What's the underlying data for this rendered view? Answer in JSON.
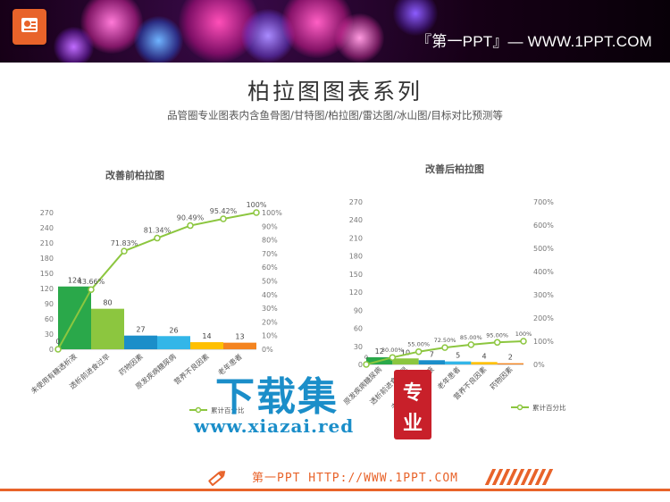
{
  "header": {
    "brand": "『第一PPT』— WWW.1PPT.COM"
  },
  "page": {
    "title": "柏拉图图表系列",
    "subtitle": "品管圈专业图表内含鱼骨图/甘特图/柏拉图/雷达图/冰山图/目标对比预测等"
  },
  "watermark": {
    "cn": "下载集",
    "tag_top": "专",
    "tag_bottom": "业",
    "url": "www.xiazai.red"
  },
  "footer": {
    "text": "第一PPT HTTP://WWW.1PPT.COM"
  },
  "icons": [
    "ppt-logo-icon",
    "pencil-icon"
  ],
  "colors": {
    "accent": "#e8632a",
    "line": "#8cc63f",
    "bars": [
      "#2aa84a",
      "#8cc63f",
      "#1b8ec9",
      "#33b6e8",
      "#ffc000",
      "#f4841f"
    ]
  },
  "chart_data": [
    {
      "type": "bar",
      "title": "改善前柏拉图",
      "categories": [
        "未使用有糖透析液",
        "透析前进食过早",
        "药物因素",
        "原发疾病糖尿病",
        "营养不良因素",
        "老年患者"
      ],
      "values": [
        124,
        80,
        27,
        26,
        14,
        13
      ],
      "value_labels": [
        "124",
        "80",
        "27",
        "26",
        "14",
        "13"
      ],
      "cumulative": [
        0,
        43.66,
        71.83,
        81.34,
        90.49,
        95.42,
        100
      ],
      "cumulative_labels": [
        "0",
        "43.66%",
        "71.83%",
        "81.34%",
        "90.49%",
        "95.42%",
        "100%"
      ],
      "y_ticks": [
        "0",
        "30",
        "60",
        "90",
        "120",
        "150",
        "180",
        "210",
        "240",
        "270"
      ],
      "y2_ticks": [
        "0%",
        "10%",
        "20%",
        "30%",
        "40%",
        "50%",
        "60%",
        "70%",
        "80%",
        "90%",
        "100%"
      ],
      "ylim": [
        0,
        270
      ],
      "y2lim": [
        0,
        100
      ],
      "legend": "累计百分比",
      "legend_position": "bottom"
    },
    {
      "type": "bar",
      "title": "改善后柏拉图",
      "categories": [
        "原发疾病糖尿病",
        "透析前进食过早",
        "未使用有糖透析液",
        "老年患者",
        "营养不良因素",
        "药物因素"
      ],
      "values": [
        12,
        10,
        7,
        5,
        4,
        2
      ],
      "value_labels": [
        "12",
        "10",
        "7",
        "5",
        "4",
        "2"
      ],
      "cumulative": [
        0,
        30.0,
        55.0,
        72.5,
        85.0,
        95.0,
        100
      ],
      "cumulative_labels": [
        "0",
        "30.00%",
        "55.00%",
        "72.50%",
        "85.00%",
        "95.00%",
        "100%"
      ],
      "y_ticks": [
        "0",
        "30",
        "60",
        "90",
        "120",
        "150",
        "180",
        "210",
        "240",
        "270"
      ],
      "y2_ticks": [
        "0%",
        "100%",
        "200%",
        "300%",
        "400%",
        "500%",
        "600%",
        "700%"
      ],
      "ylim": [
        0,
        270
      ],
      "y2lim": [
        0,
        700
      ],
      "legend": "累计百分比",
      "legend_position": "bottom-right"
    }
  ]
}
